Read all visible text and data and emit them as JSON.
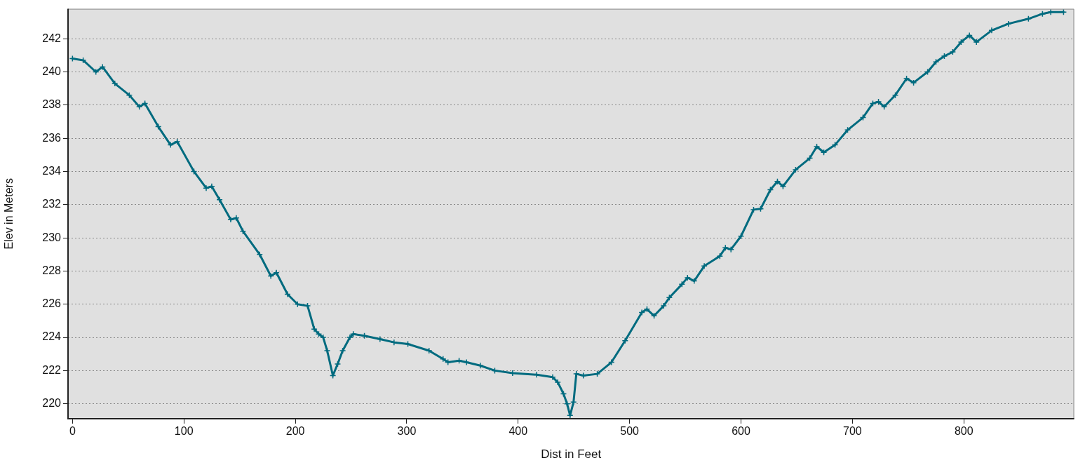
{
  "chart_data": {
    "type": "line",
    "xlabel": "Dist in Feet",
    "ylabel": "Elev in Meters",
    "xlim": [
      -4,
      899
    ],
    "xticks": [
      0,
      100,
      200,
      300,
      400,
      500,
      600,
      700,
      800
    ],
    "ylim": [
      219.1,
      243.8
    ],
    "yticks": [
      220,
      222,
      224,
      226,
      228,
      230,
      232,
      234,
      236,
      238,
      240,
      242
    ],
    "grid": "y",
    "legend": false,
    "marker": "cross",
    "line_style": "solid",
    "series": [
      {
        "color": "#006b7f",
        "x": [
          0,
          9.6,
          21,
          27,
          38,
          51,
          60,
          65,
          77,
          88,
          94,
          109,
          120,
          125,
          132,
          142,
          147,
          153,
          168,
          178,
          183,
          193,
          202,
          211,
          217,
          221,
          225,
          228.6,
          233.7,
          238,
          242.5,
          249,
          252,
          262,
          276,
          288.6,
          301,
          320,
          332.6,
          337,
          347,
          353.7,
          366,
          379,
          395,
          416.6,
          431,
          435.5,
          440.7,
          443.9,
          446.6,
          449.7,
          452.2,
          458.5,
          471,
          483.7,
          496,
          511,
          515.6,
          522,
          530.6,
          535.7,
          547,
          552,
          558,
          567,
          581,
          586,
          591,
          600,
          611.3,
          617.6,
          626.4,
          632.7,
          637.7,
          649,
          661.7,
          668,
          674.3,
          684.4,
          695.7,
          709.5,
          718.3,
          723.4,
          728.5,
          738.5,
          748.6,
          754.9,
          767.5,
          775,
          782.5,
          790,
          797.6,
          805,
          811.3,
          825,
          840,
          858,
          870.6,
          878,
          889.5
        ],
        "values": [
          240.8,
          240.7,
          240.0,
          240.3,
          239.3,
          238.6,
          237.9,
          238.1,
          236.7,
          235.6,
          235.8,
          234.0,
          233.0,
          233.1,
          232.3,
          231.1,
          231.2,
          230.4,
          229.0,
          227.7,
          227.9,
          226.6,
          226.0,
          225.9,
          224.5,
          224.2,
          224.0,
          223.2,
          221.7,
          222.4,
          223.2,
          224.0,
          224.2,
          224.1,
          223.9,
          223.7,
          223.6,
          223.2,
          222.7,
          222.5,
          222.6,
          222.5,
          222.3,
          222.0,
          221.85,
          221.75,
          221.6,
          221.3,
          220.6,
          220.0,
          219.3,
          220.1,
          221.8,
          221.7,
          221.8,
          222.5,
          223.8,
          225.5,
          225.7,
          225.3,
          225.9,
          226.4,
          227.2,
          227.6,
          227.4,
          228.3,
          228.9,
          229.4,
          229.3,
          230.1,
          231.7,
          231.75,
          232.9,
          233.4,
          233.1,
          234.1,
          234.8,
          235.5,
          235.15,
          235.6,
          236.5,
          237.25,
          238.1,
          238.2,
          237.9,
          238.6,
          239.6,
          239.35,
          240.0,
          240.6,
          240.95,
          241.2,
          241.8,
          242.2,
          241.8,
          242.5,
          242.9,
          243.2,
          243.5,
          243.6,
          243.6
        ]
      }
    ]
  }
}
